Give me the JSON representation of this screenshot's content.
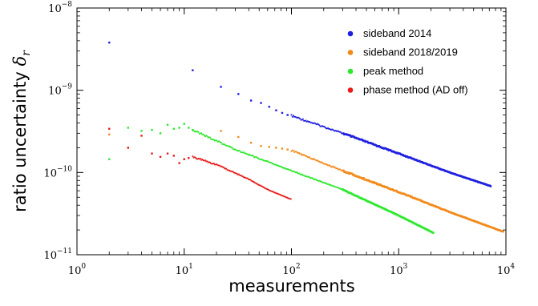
{
  "chart_data": {
    "type": "scatter",
    "title": "",
    "xlabel": "measurements",
    "ylabel_text": "ratio uncertainty ",
    "ylabel_symbol": "δ",
    "ylabel_subscript": "r",
    "x_scale": "log",
    "y_scale": "log",
    "xlim": [
      1,
      10000
    ],
    "ylim": [
      1e-11,
      1e-08
    ],
    "grid": false,
    "legend_position": "top-right",
    "x_ticks": [
      {
        "value": 1,
        "base": "10",
        "exp": "0"
      },
      {
        "value": 10,
        "base": "10",
        "exp": "1"
      },
      {
        "value": 100,
        "base": "10",
        "exp": "2"
      },
      {
        "value": 1000,
        "base": "10",
        "exp": "3"
      },
      {
        "value": 10000,
        "base": "10",
        "exp": "4"
      }
    ],
    "y_ticks": [
      {
        "value": 1e-08,
        "base": "10",
        "exp": "−8"
      },
      {
        "value": 1e-09,
        "base": "10",
        "exp": "−9"
      },
      {
        "value": 1e-10,
        "base": "10",
        "exp": "−10"
      },
      {
        "value": 1e-11,
        "base": "10",
        "exp": "−11"
      }
    ],
    "series": [
      {
        "name": "sideband 2014",
        "color": "#1f1fe0",
        "x_range": [
          2,
          7300
        ],
        "sparse_points": [
          {
            "x": 2,
            "y": 3.8e-09
          },
          {
            "x": 12,
            "y": 1.75e-09
          },
          {
            "x": 22,
            "y": 1.1e-09
          },
          {
            "x": 32,
            "y": 9e-10
          },
          {
            "x": 42,
            "y": 7.5e-10
          },
          {
            "x": 52,
            "y": 7e-10
          },
          {
            "x": 62,
            "y": 6.3e-10
          },
          {
            "x": 72,
            "y": 5.7e-10
          },
          {
            "x": 82,
            "y": 5.3e-10
          },
          {
            "x": 92,
            "y": 5e-10
          }
        ],
        "trend": [
          {
            "x": 100,
            "y": 4.9e-10
          },
          {
            "x": 300,
            "y": 3e-10
          },
          {
            "x": 1000,
            "y": 1.7e-10
          },
          {
            "x": 3000,
            "y": 1e-10
          },
          {
            "x": 7300,
            "y": 6.8e-11
          }
        ]
      },
      {
        "name": "sideband 2018/2019",
        "color": "#f28a1a",
        "x_range": [
          2,
          9500
        ],
        "sparse_points": [
          {
            "x": 2,
            "y": 2.9e-10
          },
          {
            "x": 3,
            "y": 2e-10
          },
          {
            "x": 22,
            "y": 3.2e-10
          },
          {
            "x": 32,
            "y": 2.7e-10
          },
          {
            "x": 42,
            "y": 2.3e-10
          },
          {
            "x": 52,
            "y": 2.1e-10
          },
          {
            "x": 62,
            "y": 2.05e-10
          },
          {
            "x": 72,
            "y": 2e-10
          },
          {
            "x": 82,
            "y": 1.95e-10
          },
          {
            "x": 92,
            "y": 1.9e-10
          }
        ],
        "trend": [
          {
            "x": 100,
            "y": 1.85e-10
          },
          {
            "x": 300,
            "y": 1.05e-10
          },
          {
            "x": 1000,
            "y": 5.8e-11
          },
          {
            "x": 3000,
            "y": 3.3e-11
          },
          {
            "x": 9500,
            "y": 1.9e-11
          }
        ]
      },
      {
        "name": "peak method",
        "color": "#2ee82e",
        "x_range": [
          2,
          2100
        ],
        "sparse_points": [
          {
            "x": 2,
            "y": 1.45e-10
          },
          {
            "x": 3,
            "y": 3.5e-10
          },
          {
            "x": 4,
            "y": 3.2e-10
          },
          {
            "x": 5,
            "y": 3.3e-10
          },
          {
            "x": 6,
            "y": 3e-10
          },
          {
            "x": 7,
            "y": 3.8e-10
          },
          {
            "x": 8,
            "y": 3.4e-10
          },
          {
            "x": 9,
            "y": 3.5e-10
          },
          {
            "x": 10,
            "y": 3.9e-10
          },
          {
            "x": 11,
            "y": 3.5e-10
          },
          {
            "x": 12,
            "y": 3.3e-10
          }
        ],
        "trend": [
          {
            "x": 12,
            "y": 3.3e-10
          },
          {
            "x": 30,
            "y": 1.9e-10
          },
          {
            "x": 100,
            "y": 1.05e-10
          },
          {
            "x": 300,
            "y": 6.2e-11
          },
          {
            "x": 1000,
            "y": 3e-11
          },
          {
            "x": 2100,
            "y": 1.85e-11
          }
        ]
      },
      {
        "name": "phase method (AD off)",
        "color": "#e81a1a",
        "x_range": [
          2,
          100
        ],
        "sparse_points": [
          {
            "x": 2,
            "y": 3.4e-10
          },
          {
            "x": 3,
            "y": 2e-10
          },
          {
            "x": 4,
            "y": 2.8e-10
          },
          {
            "x": 5,
            "y": 1.7e-10
          },
          {
            "x": 6,
            "y": 1.55e-10
          },
          {
            "x": 7,
            "y": 1.7e-10
          },
          {
            "x": 8,
            "y": 1.6e-10
          },
          {
            "x": 9,
            "y": 1.3e-10
          },
          {
            "x": 10,
            "y": 1.45e-10
          },
          {
            "x": 11,
            "y": 1.5e-10
          }
        ],
        "trend": [
          {
            "x": 12,
            "y": 1.55e-10
          },
          {
            "x": 20,
            "y": 1.25e-10
          },
          {
            "x": 40,
            "y": 8.3e-11
          },
          {
            "x": 60,
            "y": 6.2e-11
          },
          {
            "x": 100,
            "y": 4.7e-11
          }
        ]
      }
    ]
  }
}
